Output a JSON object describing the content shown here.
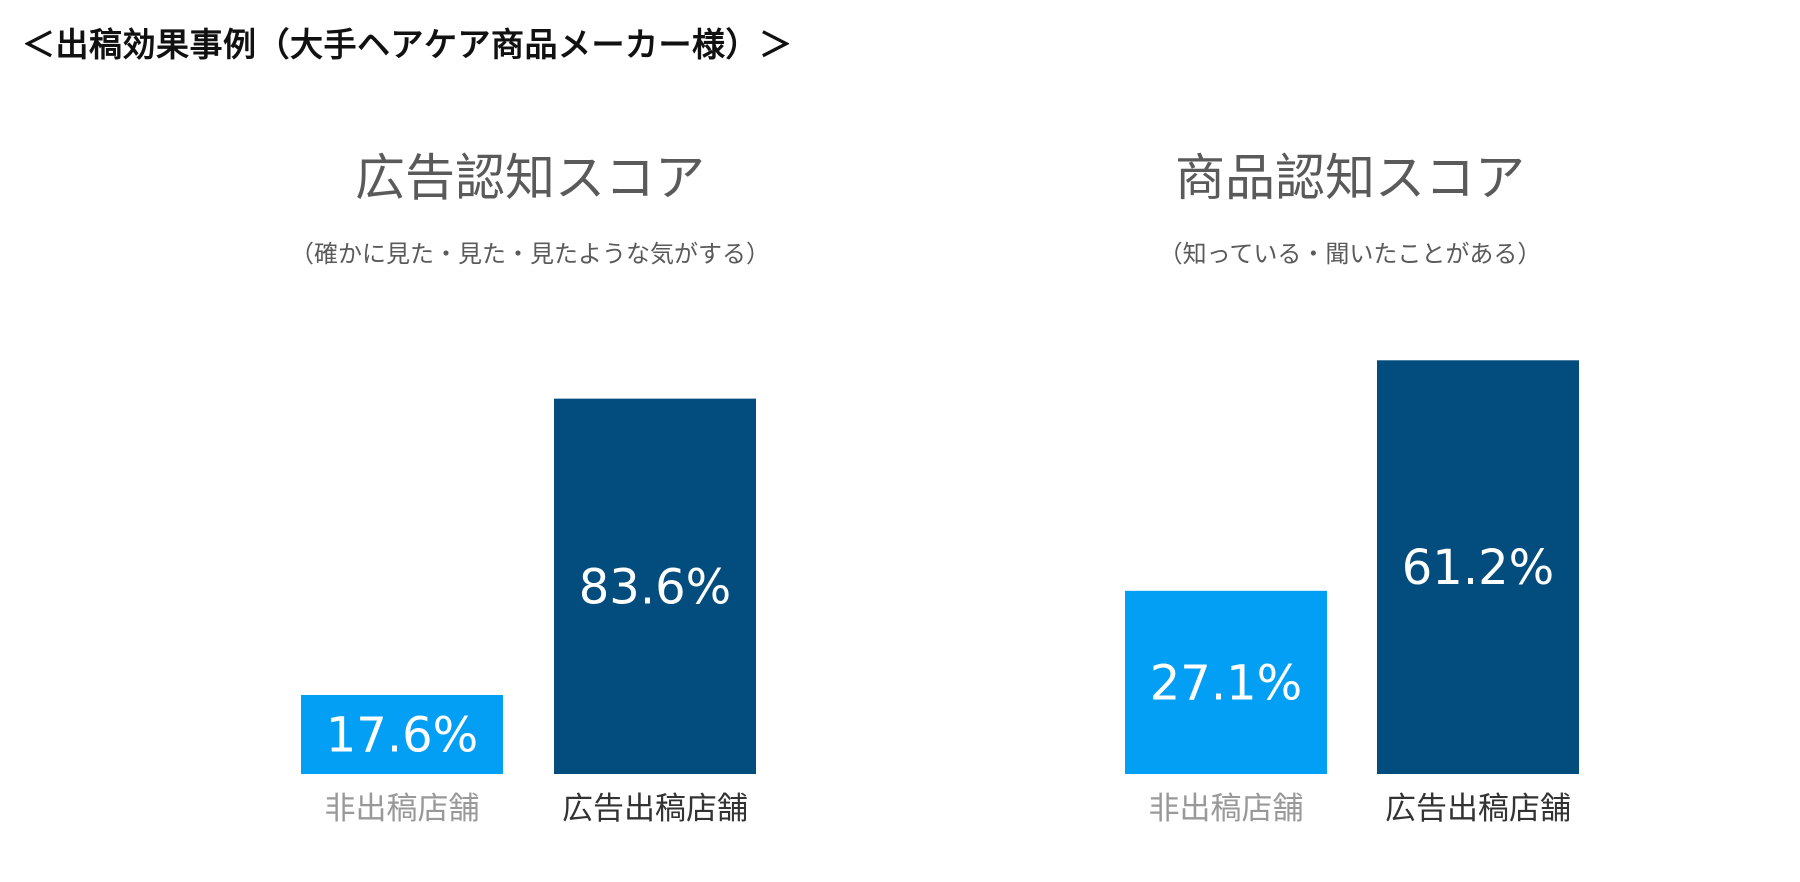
{
  "page": {
    "heading": "＜出稿効果事例（大手ヘアケア商品メーカー様）＞"
  },
  "colors": {
    "non_placement": "#039ff5",
    "placement": "#034d7e",
    "category_dark": "#333333",
    "category_light": "#999999",
    "title": "#5a5a5a",
    "bar_text": "#ffffff"
  },
  "chart_data": [
    {
      "type": "bar",
      "title": "広告認知スコア",
      "subtitle": "（確かに見た・見た・見たような気がする）",
      "categories": [
        "非出稿店舗",
        "広告出稿店舗"
      ],
      "values": [
        17.6,
        83.6
      ],
      "value_labels": [
        "17.6%",
        "83.6%"
      ],
      "ylim": [
        0,
        100
      ],
      "grid": false
    },
    {
      "type": "bar",
      "title": "商品認知スコア",
      "subtitle": "（知っている・聞いたことがある）",
      "categories": [
        "非出稿店舗",
        "広告出稿店舗"
      ],
      "values": [
        27.1,
        61.2
      ],
      "value_labels": [
        "27.1%",
        "61.2%"
      ],
      "ylim": [
        0,
        75
      ],
      "grid": false
    }
  ]
}
